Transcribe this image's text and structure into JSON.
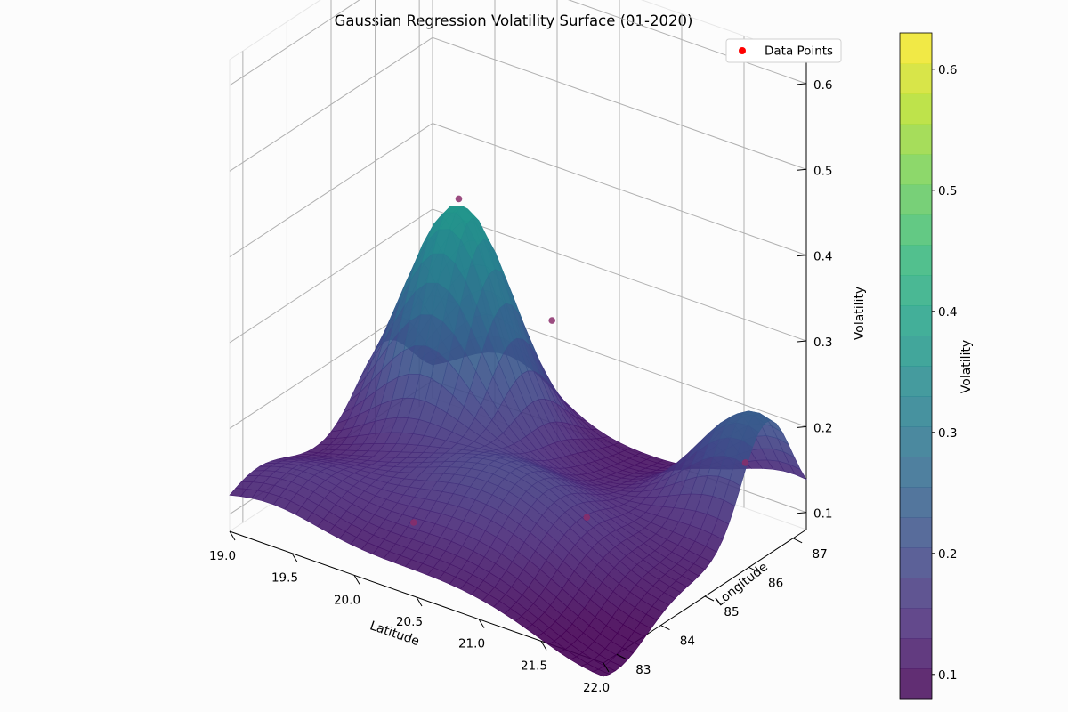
{
  "chart_data": {
    "type": "surface",
    "title": "Gaussian Regression Volatility Surface (01-2020)",
    "xlabel": "Latitude",
    "ylabel": "Longitude",
    "zlabel": "Volatility",
    "xlim": [
      19.0,
      22.0
    ],
    "ylim": [
      82.7,
      87.3
    ],
    "zlim": [
      0.08,
      0.63
    ],
    "x_ticks": [
      "19.0",
      "19.5",
      "20.0",
      "20.5",
      "21.0",
      "21.5",
      "22.0"
    ],
    "y_ticks": [
      "83",
      "84",
      "85",
      "86",
      "87"
    ],
    "z_ticks": [
      "0.1",
      "0.2",
      "0.3",
      "0.4",
      "0.5",
      "0.6"
    ],
    "legend": {
      "entries": [
        "Data Points"
      ],
      "placement": "top-right",
      "marker_color": "#ff0000"
    },
    "colormap": "viridis",
    "colorbar": {
      "label": "Volatility",
      "range": [
        0.08,
        0.63
      ],
      "ticks": [
        "0.1",
        "0.2",
        "0.3",
        "0.4",
        "0.5",
        "0.6"
      ]
    },
    "data_points": [
      {
        "lat": 19.6,
        "lon": 86.2,
        "vol": 0.38
      },
      {
        "lat": 20.3,
        "lon": 83.2,
        "vol": 0.14
      },
      {
        "lat": 21.3,
        "lon": 84.3,
        "vol": 0.16
      },
      {
        "lat": 20.1,
        "lon": 86.9,
        "vol": 0.24
      },
      {
        "lat": 21.9,
        "lon": 86.2,
        "vol": 0.19
      }
    ]
  }
}
